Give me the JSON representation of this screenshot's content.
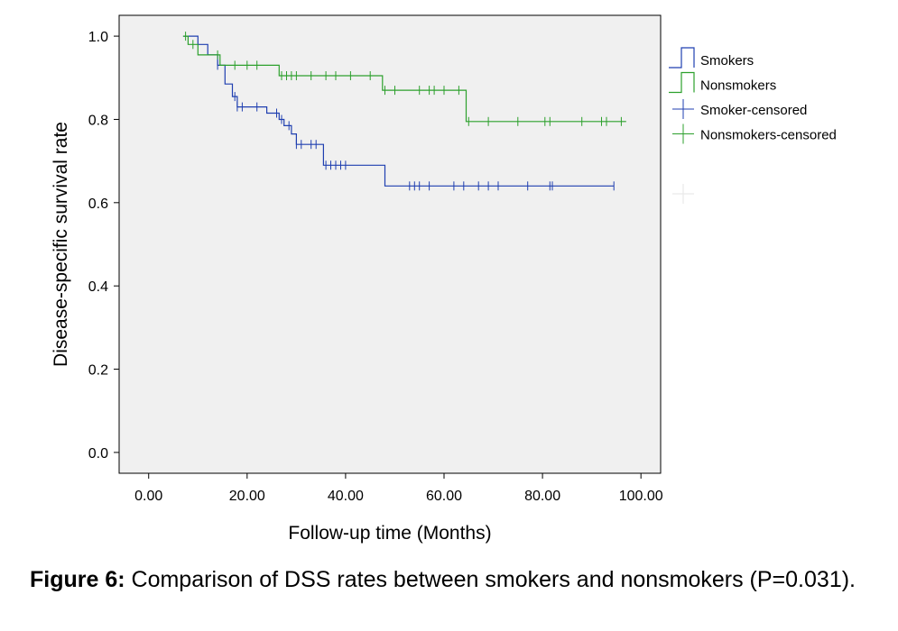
{
  "chart_data": {
    "type": "line",
    "subtype": "kaplan-meier step",
    "xlabel": "Follow-up time (Months)",
    "ylabel": "Disease-specific survival rate",
    "xlim": [
      -6,
      104
    ],
    "ylim": [
      -0.05,
      1.05
    ],
    "x_ticks": [
      "0.00",
      "20.00",
      "40.00",
      "60.00",
      "80.00",
      "100.00"
    ],
    "x_tick_values": [
      0,
      20,
      40,
      60,
      80,
      100
    ],
    "y_ticks": [
      "0.0",
      "0.2",
      "0.4",
      "0.6",
      "0.8",
      "1.0"
    ],
    "y_tick_values": [
      0,
      0.2,
      0.4,
      0.6,
      0.8,
      1.0
    ],
    "grid": false,
    "plot_background": "#f0f0f0",
    "legend_position": "right",
    "series": [
      {
        "name": "Smokers",
        "color": "#1f3fb0",
        "steps": [
          [
            7,
            1.0
          ],
          [
            10,
            0.98
          ],
          [
            12,
            0.955
          ],
          [
            14,
            0.93
          ],
          [
            15.5,
            0.885
          ],
          [
            17,
            0.855
          ],
          [
            18,
            0.83
          ],
          [
            24,
            0.815
          ],
          [
            26.5,
            0.8
          ],
          [
            27.5,
            0.785
          ],
          [
            29,
            0.765
          ],
          [
            30,
            0.74
          ],
          [
            35.5,
            0.69
          ],
          [
            48,
            0.64
          ],
          [
            94.5,
            0.64
          ]
        ]
      },
      {
        "name": "Nonsmokers",
        "color": "#2ca02c",
        "steps": [
          [
            7,
            1.0
          ],
          [
            8,
            0.98
          ],
          [
            10,
            0.955
          ],
          [
            14.5,
            0.93
          ],
          [
            26.5,
            0.905
          ],
          [
            47.5,
            0.87
          ],
          [
            64.5,
            0.795
          ],
          [
            97,
            0.795
          ]
        ]
      }
    ],
    "censored": [
      {
        "name": "Smoker-censored",
        "color": "#1f3fb0",
        "x": [
          14,
          17.5,
          18,
          19,
          22,
          26,
          27,
          28.5,
          30,
          31,
          33,
          34,
          36,
          37,
          38,
          39,
          40,
          53,
          54,
          55,
          57,
          62,
          64,
          67,
          69,
          71,
          77,
          81.5,
          82,
          94.5
        ]
      },
      {
        "name": "Nonsmokers-censored",
        "color": "#2ca02c",
        "x": [
          7.5,
          9,
          14,
          17.5,
          20,
          22,
          27,
          28,
          29,
          30,
          33,
          36,
          38,
          41,
          45,
          48,
          50,
          55,
          57,
          58,
          60,
          63,
          65,
          69,
          75,
          80.5,
          81.5,
          88,
          92,
          93,
          96
        ]
      }
    ],
    "legend": [
      {
        "label": "Smokers",
        "kind": "step",
        "color": "#1f3fb0"
      },
      {
        "label": "Nonsmokers",
        "kind": "step",
        "color": "#2ca02c"
      },
      {
        "label": "Smoker-censored",
        "kind": "cross",
        "color": "#1f3fb0"
      },
      {
        "label": "Nonsmokers-censored",
        "kind": "cross",
        "color": "#2ca02c"
      }
    ]
  },
  "caption": {
    "label": "Figure 6:",
    "text": " Comparison of DSS rates between smokers and nonsmokers (P=0.031)."
  }
}
